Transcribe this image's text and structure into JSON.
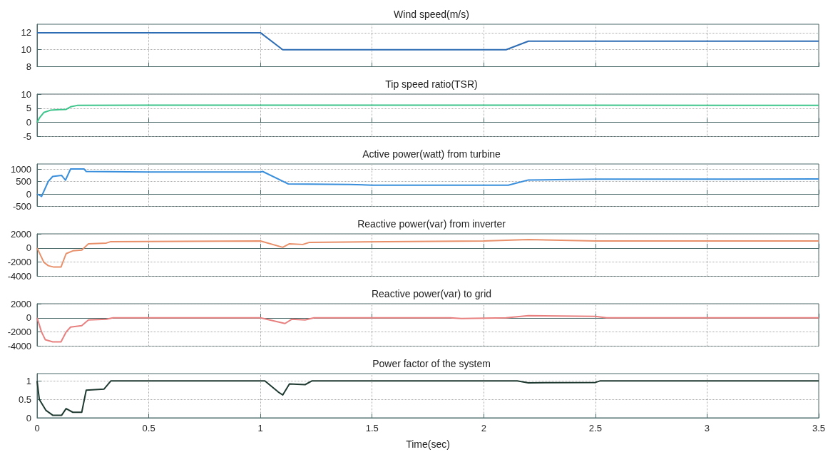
{
  "chart_data": [
    {
      "type": "line",
      "title": "Wind speed(m/s)",
      "color": "#2e6db4",
      "grid": true,
      "tick_labels": "y",
      "x": [
        0,
        1.0,
        1.1,
        2.1,
        2.2,
        3.5
      ],
      "values": [
        12,
        12,
        10,
        10,
        11,
        11
      ],
      "xlim": [
        0,
        3.5
      ],
      "xticks": [
        0,
        0.5,
        1,
        1.5,
        2,
        2.5,
        3,
        3.5
      ],
      "ylim": [
        8,
        13
      ],
      "yticks": [
        8,
        10,
        12
      ]
    },
    {
      "type": "line",
      "title": "Tip speed ratio(TSR)",
      "color": "#3cc48a",
      "grid": true,
      "tick_labels": "y",
      "x": [
        0,
        0.01,
        0.03,
        0.06,
        0.1,
        0.13,
        0.15,
        0.18,
        0.5,
        1,
        2,
        3.5
      ],
      "values": [
        0,
        1.5,
        3.5,
        4.3,
        4.5,
        4.6,
        5.5,
        6,
        6.1,
        6.1,
        6.1,
        6
      ],
      "xlim": [
        0,
        3.5
      ],
      "xticks": [
        0,
        0.5,
        1,
        1.5,
        2,
        2.5,
        3,
        3.5
      ],
      "ylim": [
        -5,
        10
      ],
      "yticks": [
        -5,
        0,
        5,
        10
      ]
    },
    {
      "type": "line",
      "title": "Active power(watt) from turbine",
      "color": "#3a8fdc",
      "grid": true,
      "tick_labels": "y",
      "x": [
        0,
        0.02,
        0.05,
        0.07,
        0.11,
        0.127,
        0.15,
        0.21,
        0.22,
        0.5,
        1.0,
        1.01,
        1.125,
        1.4,
        1.5,
        2.11,
        2.2,
        2.5,
        3.5
      ],
      "values": [
        0,
        -100,
        500,
        700,
        740,
        550,
        1000,
        1000,
        900,
        880,
        880,
        900,
        400,
        380,
        350,
        350,
        560,
        590,
        600
      ],
      "xlim": [
        0,
        3.5
      ],
      "xticks": [
        0,
        0.5,
        1,
        1.5,
        2,
        2.5,
        3,
        3.5
      ],
      "ylim": [
        -500,
        1200
      ],
      "yticks": [
        -500,
        0,
        500,
        1000
      ]
    },
    {
      "type": "line",
      "title": "Reactive power(var) from inverter",
      "color": "#e8906a",
      "grid": true,
      "tick_labels": "y",
      "x": [
        0,
        0.03,
        0.05,
        0.075,
        0.107,
        0.13,
        0.16,
        0.2,
        0.23,
        0.31,
        0.33,
        1.0,
        1.1,
        1.13,
        1.19,
        1.22,
        2.0,
        2.2,
        2.5,
        3.5
      ],
      "values": [
        0,
        -2000,
        -2500,
        -2700,
        -2700,
        -800,
        -400,
        -300,
        600,
        700,
        900,
        1000,
        100,
        600,
        500,
        800,
        1000,
        1200,
        1000,
        1000
      ],
      "xlim": [
        0,
        3.5
      ],
      "xticks": [
        0,
        0.5,
        1,
        1.5,
        2,
        2.5,
        3,
        3.5
      ],
      "ylim": [
        -4000,
        2000
      ],
      "yticks": [
        -4000,
        -2000,
        0,
        2000
      ]
    },
    {
      "type": "line",
      "title": "Reactive power(var) to grid",
      "color": "#e88080",
      "grid": true,
      "tick_labels": "y",
      "x": [
        0,
        0.02,
        0.037,
        0.07,
        0.107,
        0.13,
        0.15,
        0.2,
        0.23,
        0.31,
        0.34,
        1.0,
        1.11,
        1.14,
        1.2,
        1.24,
        1.85,
        1.9,
        2.1,
        2.2,
        2.5,
        2.55,
        3.5
      ],
      "values": [
        0,
        -2000,
        -3100,
        -3400,
        -3400,
        -2000,
        -1300,
        -1100,
        -300,
        -200,
        0,
        0,
        -800,
        -200,
        -300,
        0,
        0,
        -100,
        0,
        300,
        200,
        0,
        0
      ],
      "xlim": [
        0,
        3.5
      ],
      "xticks": [
        0,
        0.5,
        1,
        1.5,
        2,
        2.5,
        3,
        3.5
      ],
      "ylim": [
        -4000,
        2000
      ],
      "yticks": [
        -4000,
        -2000,
        0,
        2000
      ]
    },
    {
      "type": "line",
      "title": "Power factor of the system",
      "xlabel": "Time(sec)",
      "color": "#1f3a30",
      "grid": true,
      "x": [
        0,
        0.01,
        0.04,
        0.07,
        0.11,
        0.13,
        0.16,
        0.2,
        0.22,
        0.3,
        0.33,
        1.02,
        1.08,
        1.1,
        1.13,
        1.2,
        1.23,
        2.15,
        2.2,
        2.5,
        2.52,
        3.5
      ],
      "values": [
        1,
        0.5,
        0.2,
        0.07,
        0.07,
        0.25,
        0.15,
        0.15,
        0.75,
        0.78,
        1,
        1,
        0.7,
        0.62,
        0.92,
        0.9,
        1,
        1,
        0.95,
        0.96,
        1,
        1
      ],
      "xlim": [
        0,
        3.5
      ],
      "xticks": [
        0,
        0.5,
        1,
        1.5,
        2,
        2.5,
        3,
        3.5
      ],
      "ylim": [
        0,
        1.2
      ],
      "yticks": [
        0,
        0.5,
        1
      ]
    }
  ]
}
